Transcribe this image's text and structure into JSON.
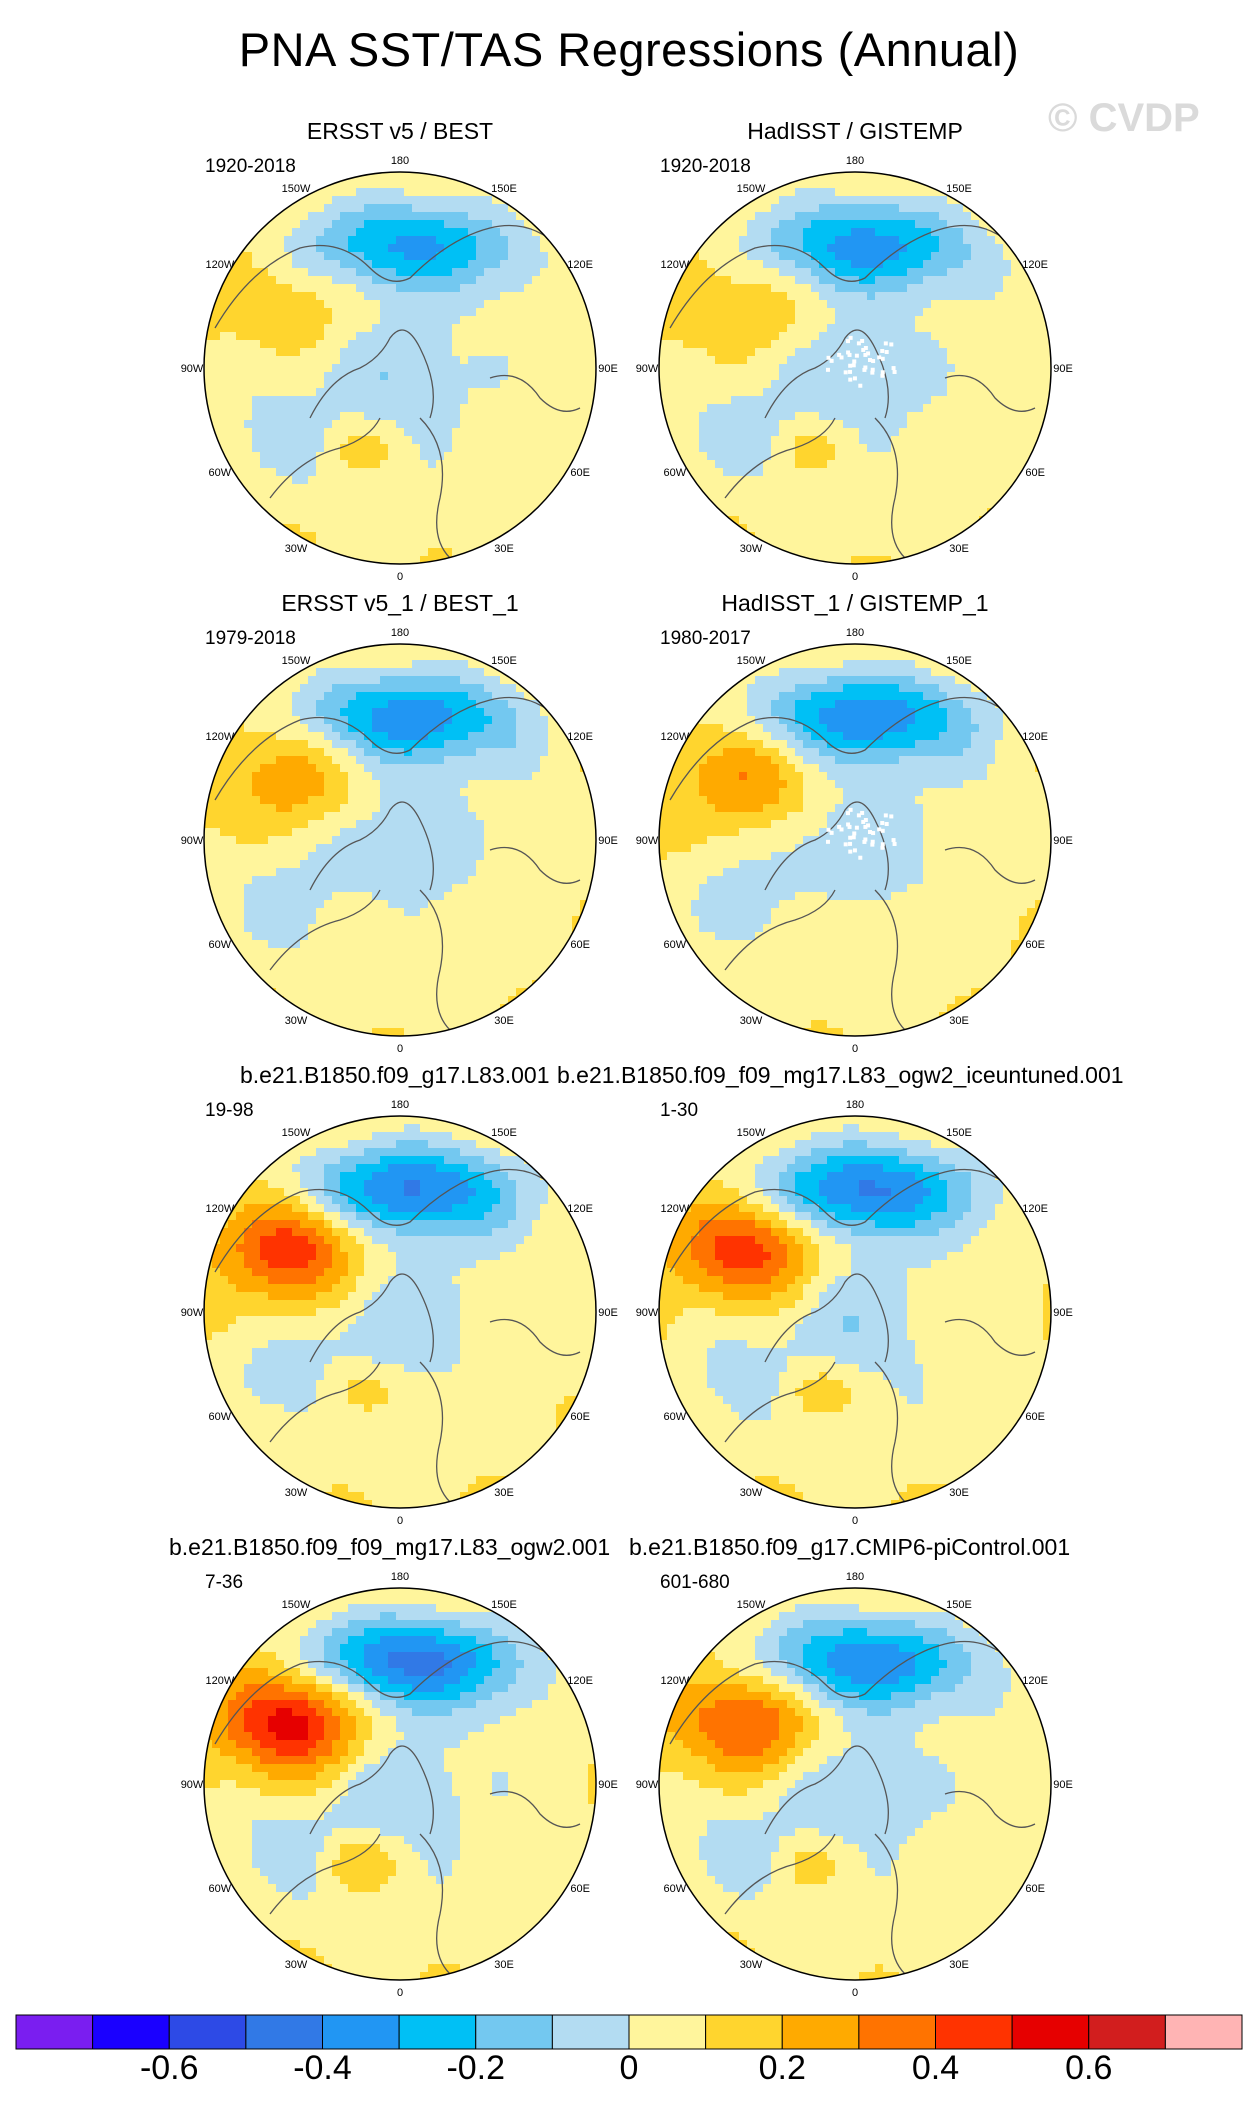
{
  "title": "PNA SST/TAS Regressions (Annual)",
  "watermark": "© CVDP",
  "longitude_labels": [
    "180",
    "150E",
    "120E",
    "90E",
    "60E",
    "30E",
    "0",
    "30W",
    "60W",
    "90W",
    "120W",
    "150W"
  ],
  "panels": [
    {
      "title": "ERSST v5 / BEST",
      "period": "1920-2018",
      "pattern": {
        "npac_min": -0.35,
        "nam_max": 0.15,
        "natl": 0.12,
        "noise": 0
      }
    },
    {
      "title": "HadISST / GISTEMP",
      "period": "1920-2018",
      "pattern": {
        "npac_min": -0.38,
        "nam_max": 0.18,
        "natl": 0.12,
        "noise": 1
      }
    },
    {
      "title": "ERSST v5_1 / BEST_1",
      "period": "1979-2018",
      "pattern": {
        "npac_min": -0.4,
        "nam_max": 0.25,
        "natl": 0.08,
        "noise": 0
      }
    },
    {
      "title": "HadISST_1 / GISTEMP_1",
      "period": "1980-2017",
      "pattern": {
        "npac_min": -0.42,
        "nam_max": 0.28,
        "natl": 0.08,
        "noise": 1
      }
    },
    {
      "title": "b.e21.B1850.f09_g17.L83.001",
      "period": "19-98",
      "pattern": {
        "npac_min": -0.45,
        "nam_max": 0.45,
        "natl": 0.15,
        "noise": 0
      }
    },
    {
      "title": "b.e21.B1850.f09_f09_mg17.L83_ogw2_iceuntuned.001",
      "period": "1-30",
      "pattern": {
        "npac_min": -0.45,
        "nam_max": 0.45,
        "natl": 0.15,
        "noise": 0
      }
    },
    {
      "title": "b.e21.B1850.f09_f09_mg17.L83_ogw2.001",
      "period": "7-36",
      "pattern": {
        "npac_min": -0.48,
        "nam_max": 0.55,
        "natl": 0.18,
        "noise": 0
      }
    },
    {
      "title": "b.e21.B1850.f09_g17.CMIP6-piControl.001",
      "period": "601-680",
      "pattern": {
        "npac_min": -0.42,
        "nam_max": 0.4,
        "natl": 0.12,
        "noise": 0
      }
    }
  ],
  "chart_data": {
    "type": "heatmap",
    "title": "PNA SST/TAS Regressions (Annual)",
    "projection": "north polar stereographic",
    "colorbar": {
      "levels": [
        -0.7,
        -0.6,
        -0.5,
        -0.4,
        -0.3,
        -0.2,
        -0.1,
        0,
        0.1,
        0.2,
        0.3,
        0.4,
        0.5,
        0.6,
        0.7
      ],
      "tick_labels": [
        "-0.6",
        "-0.4",
        "-0.2",
        "0",
        "0.2",
        "0.4",
        "0.6"
      ],
      "tick_values": [
        -0.6,
        -0.4,
        -0.2,
        0,
        0.2,
        0.4,
        0.6
      ],
      "colors": [
        "#7a1ef0",
        "#1a00ff",
        "#2d4ae6",
        "#3179e6",
        "#2196f3",
        "#00c0f5",
        "#73c8f0",
        "#b3dcf2",
        "#fff59c",
        "#ffd52e",
        "#ffaa00",
        "#ff7300",
        "#ff3300",
        "#e60000",
        "#d21e1e",
        "#ffb4b4"
      ]
    }
  }
}
